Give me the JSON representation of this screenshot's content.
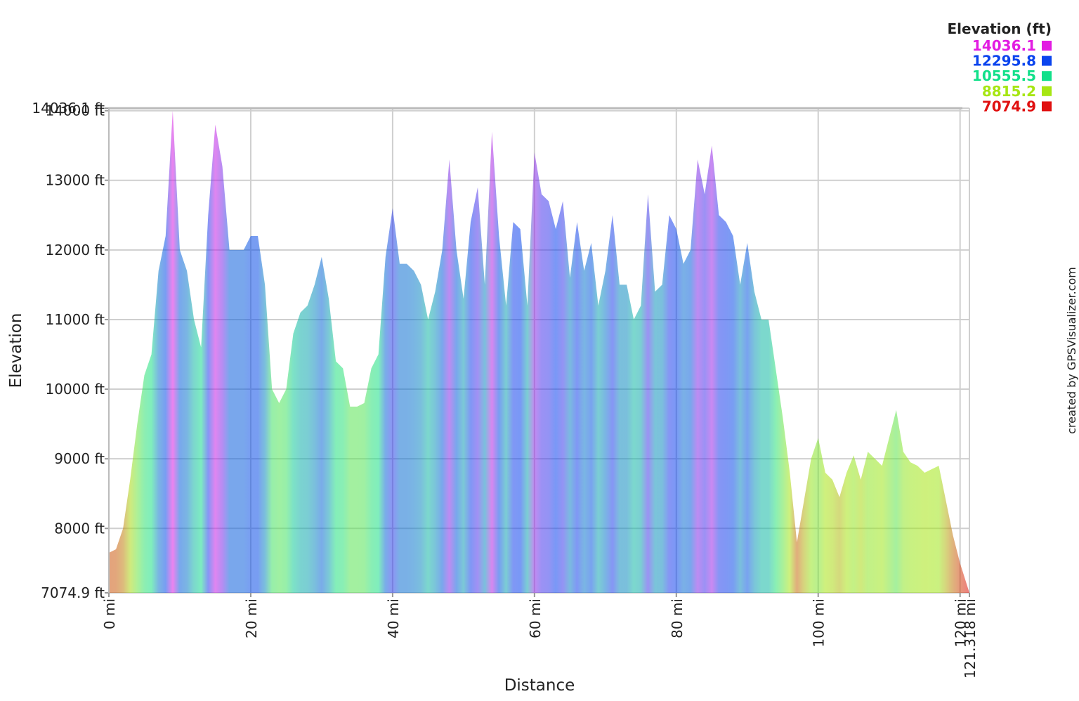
{
  "chart_data": {
    "type": "area",
    "x_label": "Distance",
    "y_label": "Elevation",
    "credit": "created by GPSVisualizer.com",
    "legend_title": "Elevation (ft)",
    "legend": [
      {
        "label": "14036.1",
        "color": "#e21ce2"
      },
      {
        "label": "12295.8",
        "color": "#0a44ee"
      },
      {
        "label": "10555.5",
        "color": "#12e08a"
      },
      {
        "label": "8815.2",
        "color": "#a6e612"
      },
      {
        "label": "7074.9",
        "color": "#e01010"
      }
    ],
    "color_stops": [
      14036.1,
      12295.8,
      10555.5,
      8815.2,
      7074.9
    ],
    "xlim": [
      0,
      121.318
    ],
    "ylim": [
      7074.9,
      14036.1
    ],
    "xticks": [
      {
        "value": 0,
        "label": "0 mi"
      },
      {
        "value": 20,
        "label": "20 mi"
      },
      {
        "value": 40,
        "label": "40 mi"
      },
      {
        "value": 60,
        "label": "60 mi"
      },
      {
        "value": 80,
        "label": "80 mi"
      },
      {
        "value": 100,
        "label": "100 mi"
      },
      {
        "value": 120,
        "label": "120 mi"
      },
      {
        "value": 121.318,
        "label": "121.318 mi"
      }
    ],
    "yticks": [
      {
        "value": 7074.9,
        "label": "7074.9 ft"
      },
      {
        "value": 8000,
        "label": "8000 ft"
      },
      {
        "value": 9000,
        "label": "9000 ft"
      },
      {
        "value": 10000,
        "label": "10000 ft"
      },
      {
        "value": 11000,
        "label": "11000 ft"
      },
      {
        "value": 12000,
        "label": "12000 ft"
      },
      {
        "value": 13000,
        "label": "13000 ft"
      },
      {
        "value": 14000,
        "label": "14000 ft"
      },
      {
        "value": 14036.1,
        "label": "14036.1 ft"
      }
    ],
    "grid": true,
    "x": [
      0,
      1,
      2,
      3,
      4,
      5,
      6,
      7,
      8,
      9,
      10,
      11,
      12,
      13,
      14,
      15,
      16,
      17,
      18,
      19,
      20,
      21,
      22,
      23,
      24,
      25,
      26,
      27,
      28,
      29,
      30,
      31,
      32,
      33,
      34,
      35,
      36,
      37,
      38,
      39,
      40,
      41,
      42,
      43,
      44,
      45,
      46,
      47,
      48,
      49,
      50,
      51,
      52,
      53,
      54,
      55,
      56,
      57,
      58,
      59,
      60,
      61,
      62,
      63,
      64,
      65,
      66,
      67,
      68,
      69,
      70,
      71,
      72,
      73,
      74,
      75,
      76,
      77,
      78,
      79,
      80,
      81,
      82,
      83,
      84,
      85,
      86,
      87,
      88,
      89,
      90,
      91,
      92,
      93,
      94,
      95,
      96,
      97,
      98,
      99,
      100,
      101,
      102,
      103,
      104,
      105,
      106,
      107,
      108,
      109,
      110,
      111,
      112,
      113,
      114,
      115,
      116,
      117,
      118,
      119,
      120,
      121.318
    ],
    "values": [
      7650,
      7700,
      8000,
      8700,
      9500,
      10200,
      10500,
      11700,
      12200,
      14000,
      12000,
      11700,
      11000,
      10600,
      12500,
      13800,
      13200,
      12000,
      12000,
      12000,
      12200,
      12200,
      11500,
      10000,
      9800,
      10000,
      10800,
      11100,
      11200,
      11500,
      11900,
      11300,
      10400,
      10300,
      9750,
      9750,
      9800,
      10300,
      10500,
      11900,
      12600,
      11800,
      11800,
      11700,
      11500,
      11000,
      11400,
      12000,
      13300,
      12000,
      11300,
      12400,
      12900,
      11500,
      13700,
      12200,
      11200,
      12400,
      12300,
      11200,
      13400,
      12800,
      12700,
      12300,
      12700,
      11600,
      12400,
      11700,
      12100,
      11200,
      11700,
      12500,
      11500,
      11500,
      11000,
      11200,
      12800,
      11400,
      11500,
      12500,
      12300,
      11800,
      12000,
      13300,
      12800,
      13500,
      12500,
      12400,
      12200,
      11500,
      12100,
      11400,
      11000,
      11000,
      10300,
      9600,
      8800,
      7800,
      8400,
      9000,
      9300,
      8800,
      8700,
      8450,
      8800,
      9050,
      8700,
      9100,
      9000,
      8900,
      9300,
      9700,
      9100,
      8950,
      8900,
      8800,
      8850,
      8900,
      8400,
      7900,
      7500,
      7074.9
    ]
  }
}
